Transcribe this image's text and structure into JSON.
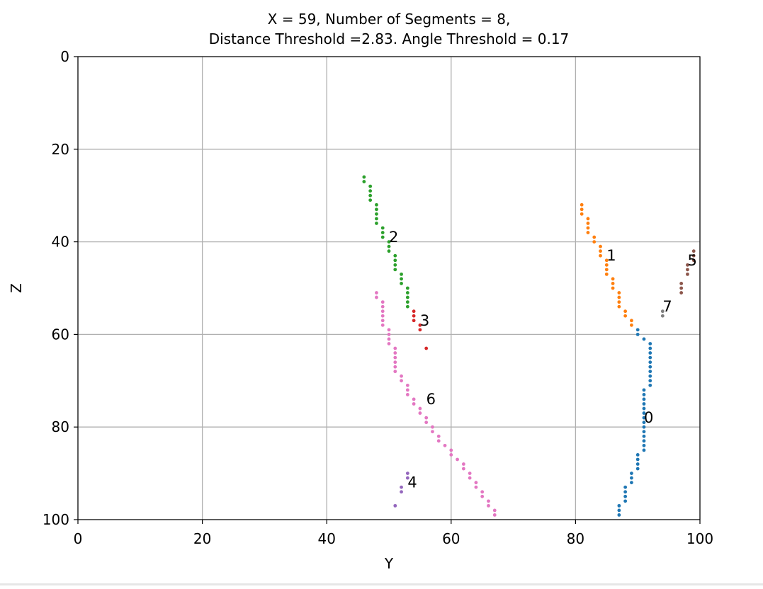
{
  "chart_data": {
    "type": "scatter",
    "title": [
      "X = 59, Number of Segments = 8,",
      "Distance Threshold =2.83. Angle Threshold = 0.17"
    ],
    "xlabel": "Y",
    "ylabel": "Z",
    "xlim": [
      0,
      100
    ],
    "ylim": [
      100,
      0
    ],
    "y_inverted": true,
    "grid": true,
    "xticks": [
      0,
      20,
      40,
      60,
      80,
      100
    ],
    "yticks": [
      0,
      20,
      40,
      60,
      80,
      100
    ],
    "series": [
      {
        "name": "0",
        "color": "#1f77b4",
        "label_pos": [
          91,
          78
        ],
        "points": [
          [
            90,
            59
          ],
          [
            90,
            60
          ],
          [
            91,
            61
          ],
          [
            92,
            62
          ],
          [
            92,
            63
          ],
          [
            92,
            64
          ],
          [
            92,
            65
          ],
          [
            92,
            66
          ],
          [
            92,
            67
          ],
          [
            92,
            68
          ],
          [
            92,
            69
          ],
          [
            92,
            70
          ],
          [
            92,
            71
          ],
          [
            91,
            72
          ],
          [
            91,
            73
          ],
          [
            91,
            74
          ],
          [
            91,
            75
          ],
          [
            91,
            76
          ],
          [
            91,
            77
          ],
          [
            91,
            78
          ],
          [
            91,
            79
          ],
          [
            91,
            80
          ],
          [
            91,
            81
          ],
          [
            91,
            82
          ],
          [
            91,
            83
          ],
          [
            91,
            84
          ],
          [
            91,
            85
          ],
          [
            90,
            86
          ],
          [
            90,
            87
          ],
          [
            90,
            88
          ],
          [
            90,
            89
          ],
          [
            89,
            90
          ],
          [
            89,
            91
          ],
          [
            89,
            92
          ],
          [
            88,
            93
          ],
          [
            88,
            94
          ],
          [
            88,
            95
          ],
          [
            88,
            96
          ],
          [
            87,
            97
          ],
          [
            87,
            98
          ],
          [
            87,
            99
          ]
        ]
      },
      {
        "name": "1",
        "color": "#ff7f0e",
        "label_pos": [
          85,
          43
        ],
        "points": [
          [
            81,
            32
          ],
          [
            81,
            33
          ],
          [
            81,
            34
          ],
          [
            82,
            35
          ],
          [
            82,
            36
          ],
          [
            82,
            37
          ],
          [
            82,
            38
          ],
          [
            83,
            39
          ],
          [
            83,
            40
          ],
          [
            84,
            41
          ],
          [
            84,
            42
          ],
          [
            84,
            43
          ],
          [
            85,
            44
          ],
          [
            85,
            45
          ],
          [
            85,
            46
          ],
          [
            85,
            47
          ],
          [
            86,
            48
          ],
          [
            86,
            49
          ],
          [
            86,
            50
          ],
          [
            87,
            51
          ],
          [
            87,
            52
          ],
          [
            87,
            53
          ],
          [
            87,
            54
          ],
          [
            88,
            55
          ],
          [
            88,
            56
          ],
          [
            89,
            57
          ],
          [
            89,
            58
          ]
        ]
      },
      {
        "name": "2",
        "color": "#2ca02c",
        "label_pos": [
          50,
          39
        ],
        "points": [
          [
            46,
            26
          ],
          [
            46,
            27
          ],
          [
            47,
            28
          ],
          [
            47,
            29
          ],
          [
            47,
            30
          ],
          [
            47,
            31
          ],
          [
            48,
            32
          ],
          [
            48,
            33
          ],
          [
            48,
            34
          ],
          [
            48,
            35
          ],
          [
            48,
            36
          ],
          [
            49,
            37
          ],
          [
            49,
            38
          ],
          [
            49,
            39
          ],
          [
            50,
            40
          ],
          [
            50,
            41
          ],
          [
            50,
            42
          ],
          [
            51,
            43
          ],
          [
            51,
            44
          ],
          [
            51,
            45
          ],
          [
            51,
            46
          ],
          [
            52,
            47
          ],
          [
            52,
            48
          ],
          [
            52,
            49
          ],
          [
            53,
            50
          ],
          [
            53,
            51
          ],
          [
            53,
            52
          ],
          [
            53,
            53
          ],
          [
            53,
            54
          ]
        ]
      },
      {
        "name": "3",
        "color": "#d62728",
        "label_pos": [
          55,
          57
        ],
        "points": [
          [
            54,
            55
          ],
          [
            54,
            56
          ],
          [
            54,
            57
          ],
          [
            55,
            58
          ],
          [
            55,
            59
          ],
          [
            56,
            63
          ]
        ]
      },
      {
        "name": "4",
        "color": "#9467bd",
        "label_pos": [
          53,
          92
        ],
        "points": [
          [
            53,
            90
          ],
          [
            53,
            91
          ],
          [
            52,
            93
          ],
          [
            52,
            94
          ],
          [
            51,
            97
          ]
        ]
      },
      {
        "name": "5",
        "color": "#8c564b",
        "label_pos": [
          98,
          44
        ],
        "points": [
          [
            99,
            42
          ],
          [
            99,
            43
          ],
          [
            99,
            44
          ],
          [
            98,
            45
          ],
          [
            98,
            46
          ],
          [
            98,
            47
          ],
          [
            97,
            49
          ],
          [
            97,
            50
          ],
          [
            97,
            51
          ]
        ]
      },
      {
        "name": "6",
        "color": "#e377c2",
        "label_pos": [
          56,
          74
        ],
        "points": [
          [
            48,
            51
          ],
          [
            48,
            52
          ],
          [
            49,
            53
          ],
          [
            49,
            54
          ],
          [
            49,
            55
          ],
          [
            49,
            56
          ],
          [
            49,
            57
          ],
          [
            49,
            58
          ],
          [
            50,
            59
          ],
          [
            50,
            60
          ],
          [
            50,
            61
          ],
          [
            50,
            62
          ],
          [
            51,
            63
          ],
          [
            51,
            64
          ],
          [
            51,
            65
          ],
          [
            51,
            66
          ],
          [
            51,
            67
          ],
          [
            51,
            68
          ],
          [
            52,
            69
          ],
          [
            52,
            70
          ],
          [
            53,
            71
          ],
          [
            53,
            72
          ],
          [
            53,
            73
          ],
          [
            54,
            74
          ],
          [
            54,
            75
          ],
          [
            55,
            76
          ],
          [
            55,
            77
          ],
          [
            56,
            78
          ],
          [
            56,
            79
          ],
          [
            57,
            80
          ],
          [
            57,
            81
          ],
          [
            58,
            82
          ],
          [
            58,
            83
          ],
          [
            59,
            84
          ],
          [
            60,
            85
          ],
          [
            60,
            86
          ],
          [
            61,
            87
          ],
          [
            62,
            88
          ],
          [
            62,
            89
          ],
          [
            63,
            90
          ],
          [
            63,
            91
          ],
          [
            64,
            92
          ],
          [
            64,
            93
          ],
          [
            65,
            94
          ],
          [
            65,
            95
          ],
          [
            66,
            96
          ],
          [
            66,
            97
          ],
          [
            67,
            98
          ],
          [
            67,
            99
          ]
        ]
      },
      {
        "name": "7",
        "color": "#7f7f7f",
        "label_pos": [
          94,
          54
        ],
        "points": [
          [
            94,
            55
          ],
          [
            94,
            56
          ]
        ]
      }
    ]
  }
}
